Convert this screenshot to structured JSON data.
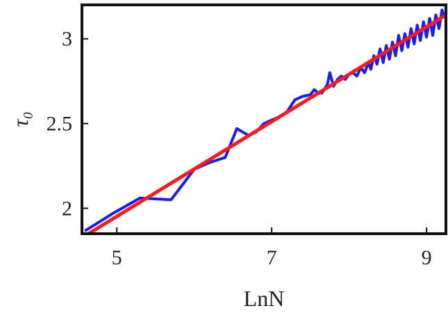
{
  "chart_data": {
    "type": "line",
    "title": "",
    "xlabel": "LnN",
    "ylabel": "τ₀",
    "xlim": [
      4.55,
      9.25
    ],
    "ylim": [
      1.85,
      3.2
    ],
    "x_ticks": [
      {
        "value": 5,
        "label": "5"
      },
      {
        "value": 7,
        "label": "7"
      },
      {
        "value": 9,
        "label": "9"
      }
    ],
    "y_ticks": [
      {
        "value": 2,
        "label": "2"
      },
      {
        "value": 2.5,
        "label": "2.5"
      },
      {
        "value": 3,
        "label": "3"
      }
    ],
    "grid": false,
    "legend": "none",
    "series": [
      {
        "color": "#1a1aff",
        "style": "line",
        "points": [
          [
            4.6,
            1.87
          ],
          [
            4.95,
            1.97
          ],
          [
            5.3,
            2.06
          ],
          [
            5.7,
            2.05
          ],
          [
            6.0,
            2.23
          ],
          [
            6.2,
            2.27
          ],
          [
            6.4,
            2.3
          ],
          [
            6.55,
            2.47
          ],
          [
            6.7,
            2.43
          ],
          [
            6.8,
            2.45
          ],
          [
            6.9,
            2.5
          ],
          [
            7.0,
            2.52
          ],
          [
            7.1,
            2.54
          ],
          [
            7.2,
            2.57
          ],
          [
            7.3,
            2.64
          ],
          [
            7.4,
            2.66
          ],
          [
            7.5,
            2.67
          ],
          [
            7.55,
            2.7
          ],
          [
            7.6,
            2.68
          ],
          [
            7.65,
            2.68
          ],
          [
            7.72,
            2.73
          ],
          [
            7.75,
            2.8
          ],
          [
            7.8,
            2.72
          ],
          [
            7.85,
            2.76
          ],
          [
            7.9,
            2.78
          ],
          [
            7.95,
            2.76
          ],
          [
            8.0,
            2.79
          ],
          [
            8.05,
            2.8
          ],
          [
            8.1,
            2.78
          ],
          [
            8.15,
            2.83
          ],
          [
            8.2,
            2.8
          ],
          [
            8.25,
            2.86
          ],
          [
            8.28,
            2.82
          ],
          [
            8.32,
            2.9
          ],
          [
            8.36,
            2.85
          ],
          [
            8.4,
            2.94
          ],
          [
            8.44,
            2.86
          ],
          [
            8.48,
            2.96
          ],
          [
            8.52,
            2.88
          ],
          [
            8.56,
            2.98
          ],
          [
            8.6,
            2.9
          ],
          [
            8.64,
            3.02
          ],
          [
            8.68,
            2.93
          ],
          [
            8.72,
            3.03
          ],
          [
            8.76,
            2.95
          ],
          [
            8.8,
            3.06
          ],
          [
            8.84,
            2.97
          ],
          [
            8.88,
            3.08
          ],
          [
            8.92,
            2.99
          ],
          [
            8.96,
            3.1
          ],
          [
            9.0,
            3.01
          ],
          [
            9.04,
            3.12
          ],
          [
            9.08,
            3.02
          ],
          [
            9.12,
            3.14
          ],
          [
            9.16,
            3.06
          ],
          [
            9.2,
            3.17
          ],
          [
            9.23,
            3.13
          ]
        ]
      },
      {
        "color": "#ff1a1a",
        "style": "line",
        "points": [
          [
            4.6,
            1.84
          ],
          [
            9.25,
            3.14
          ]
        ]
      }
    ]
  }
}
